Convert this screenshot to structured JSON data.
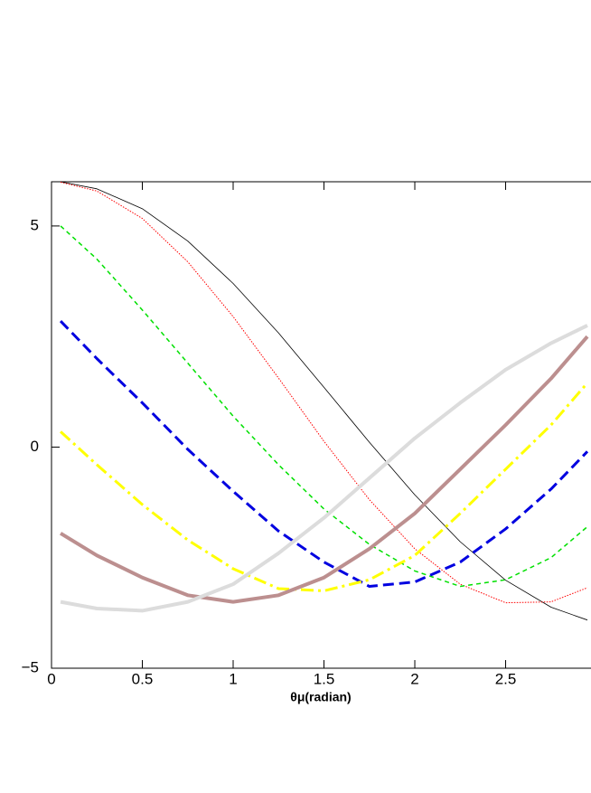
{
  "chart_data": {
    "type": "line",
    "x_label": "θμ(radian)",
    "x": [
      0.05,
      0.25,
      0.5,
      0.75,
      1.0,
      1.25,
      1.5,
      1.75,
      2.0,
      2.25,
      2.5,
      2.75,
      2.95
    ],
    "xlim": [
      0,
      2.97
    ],
    "ylim": [
      -5,
      6
    ],
    "xticks": [
      0,
      0.5,
      1,
      1.5,
      2,
      2.5
    ],
    "yticks": [
      {
        "value": -5,
        "label": "−5"
      },
      0,
      5
    ],
    "series": [
      {
        "color": "#000000",
        "width": 0.8,
        "dash": "",
        "values": [
          6.0,
          5.84,
          5.39,
          4.66,
          3.7,
          2.58,
          1.35,
          0.11,
          -1.08,
          -2.14,
          -3.01,
          -3.62,
          -3.91
        ]
      },
      {
        "color": "#ff0000",
        "width": 1,
        "dash": "1.5 1.5",
        "values": [
          5.99,
          5.79,
          5.17,
          4.19,
          2.95,
          1.56,
          0.13,
          -1.19,
          -2.3,
          -3.1,
          -3.52,
          -3.5,
          -3.18
        ]
      },
      {
        "color": "#00e000",
        "width": 1.5,
        "dash": "5 4",
        "values": [
          5.0,
          4.25,
          3.1,
          1.9,
          0.7,
          -0.4,
          -1.4,
          -2.2,
          -2.8,
          -3.15,
          -3.0,
          -2.5,
          -1.8
        ]
      },
      {
        "color": "#0000e0",
        "width": 3,
        "dash": "12 6",
        "values": [
          2.85,
          2.0,
          1.0,
          -0.05,
          -1.0,
          -1.9,
          -2.6,
          -3.15,
          -3.05,
          -2.6,
          -1.85,
          -0.95,
          -0.1
        ]
      },
      {
        "color": "#ffff00",
        "width": 3,
        "dash": "14 5 3 5",
        "values": [
          0.35,
          -0.4,
          -1.3,
          -2.1,
          -2.75,
          -3.2,
          -3.25,
          -3.0,
          -2.45,
          -1.5,
          -0.5,
          0.5,
          1.45
        ]
      },
      {
        "color": "#bc8f8f",
        "width": 4,
        "dash": "",
        "values": [
          -1.95,
          -2.45,
          -2.95,
          -3.35,
          -3.5,
          -3.35,
          -2.95,
          -2.3,
          -1.5,
          -0.5,
          0.5,
          1.55,
          2.5
        ]
      },
      {
        "color": "#dcdcdc",
        "width": 4,
        "dash": "",
        "values": [
          -3.5,
          -3.65,
          -3.7,
          -3.5,
          -3.1,
          -2.4,
          -1.6,
          -0.7,
          0.2,
          1.0,
          1.75,
          2.35,
          2.75
        ]
      }
    ]
  }
}
